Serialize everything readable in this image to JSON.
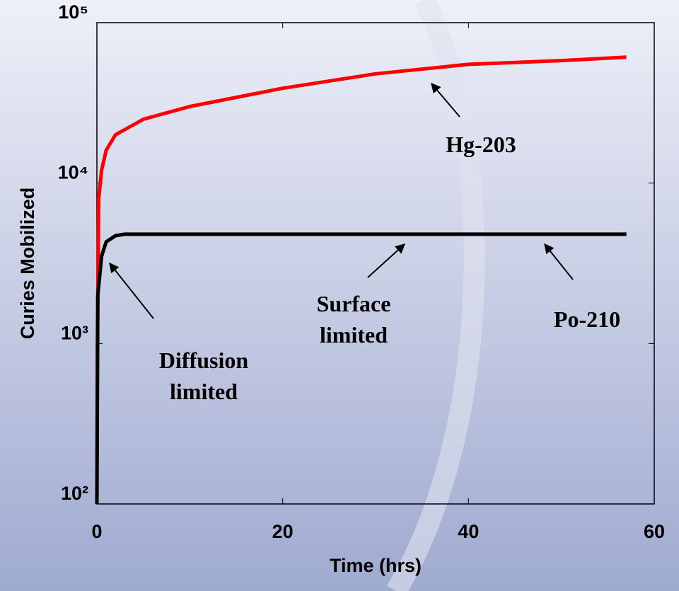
{
  "chart_data": {
    "type": "line",
    "x_label": "Time (hrs)",
    "y_label": "Curies Mobilized",
    "xlim": [
      0,
      60
    ],
    "xticks": [
      0,
      20,
      40,
      60
    ],
    "ylim": [
      100,
      100000
    ],
    "log_y": true,
    "yticks": [
      {
        "value": 100,
        "label": "10²"
      },
      {
        "value": 1000,
        "label": "10³"
      },
      {
        "value": 10000,
        "label": "10⁴"
      },
      {
        "value": 100000,
        "label": "10⁵"
      }
    ],
    "series": [
      {
        "name": "Hg-203",
        "color": "#ff0000",
        "x": [
          0,
          0.05,
          0.2,
          0.5,
          1,
          2,
          5,
          10,
          20,
          30,
          40,
          50,
          57
        ],
        "values": [
          100,
          1000,
          8000,
          12000,
          16000,
          20000,
          25000,
          30000,
          39000,
          48000,
          55000,
          58000,
          61000
        ]
      },
      {
        "name": "Po-210",
        "color": "#000000",
        "x": [
          0,
          0.1,
          0.5,
          1,
          2,
          3,
          57
        ],
        "values": [
          100,
          2000,
          3500,
          4300,
          4700,
          4800,
          4800
        ]
      }
    ],
    "annotations": [
      {
        "lines": [
          "Hg-203"
        ]
      },
      {
        "lines": [
          "Surface",
          "limited"
        ]
      },
      {
        "lines": [
          "Po-210"
        ]
      },
      {
        "lines": [
          "Diffusion",
          "limited"
        ]
      }
    ]
  }
}
